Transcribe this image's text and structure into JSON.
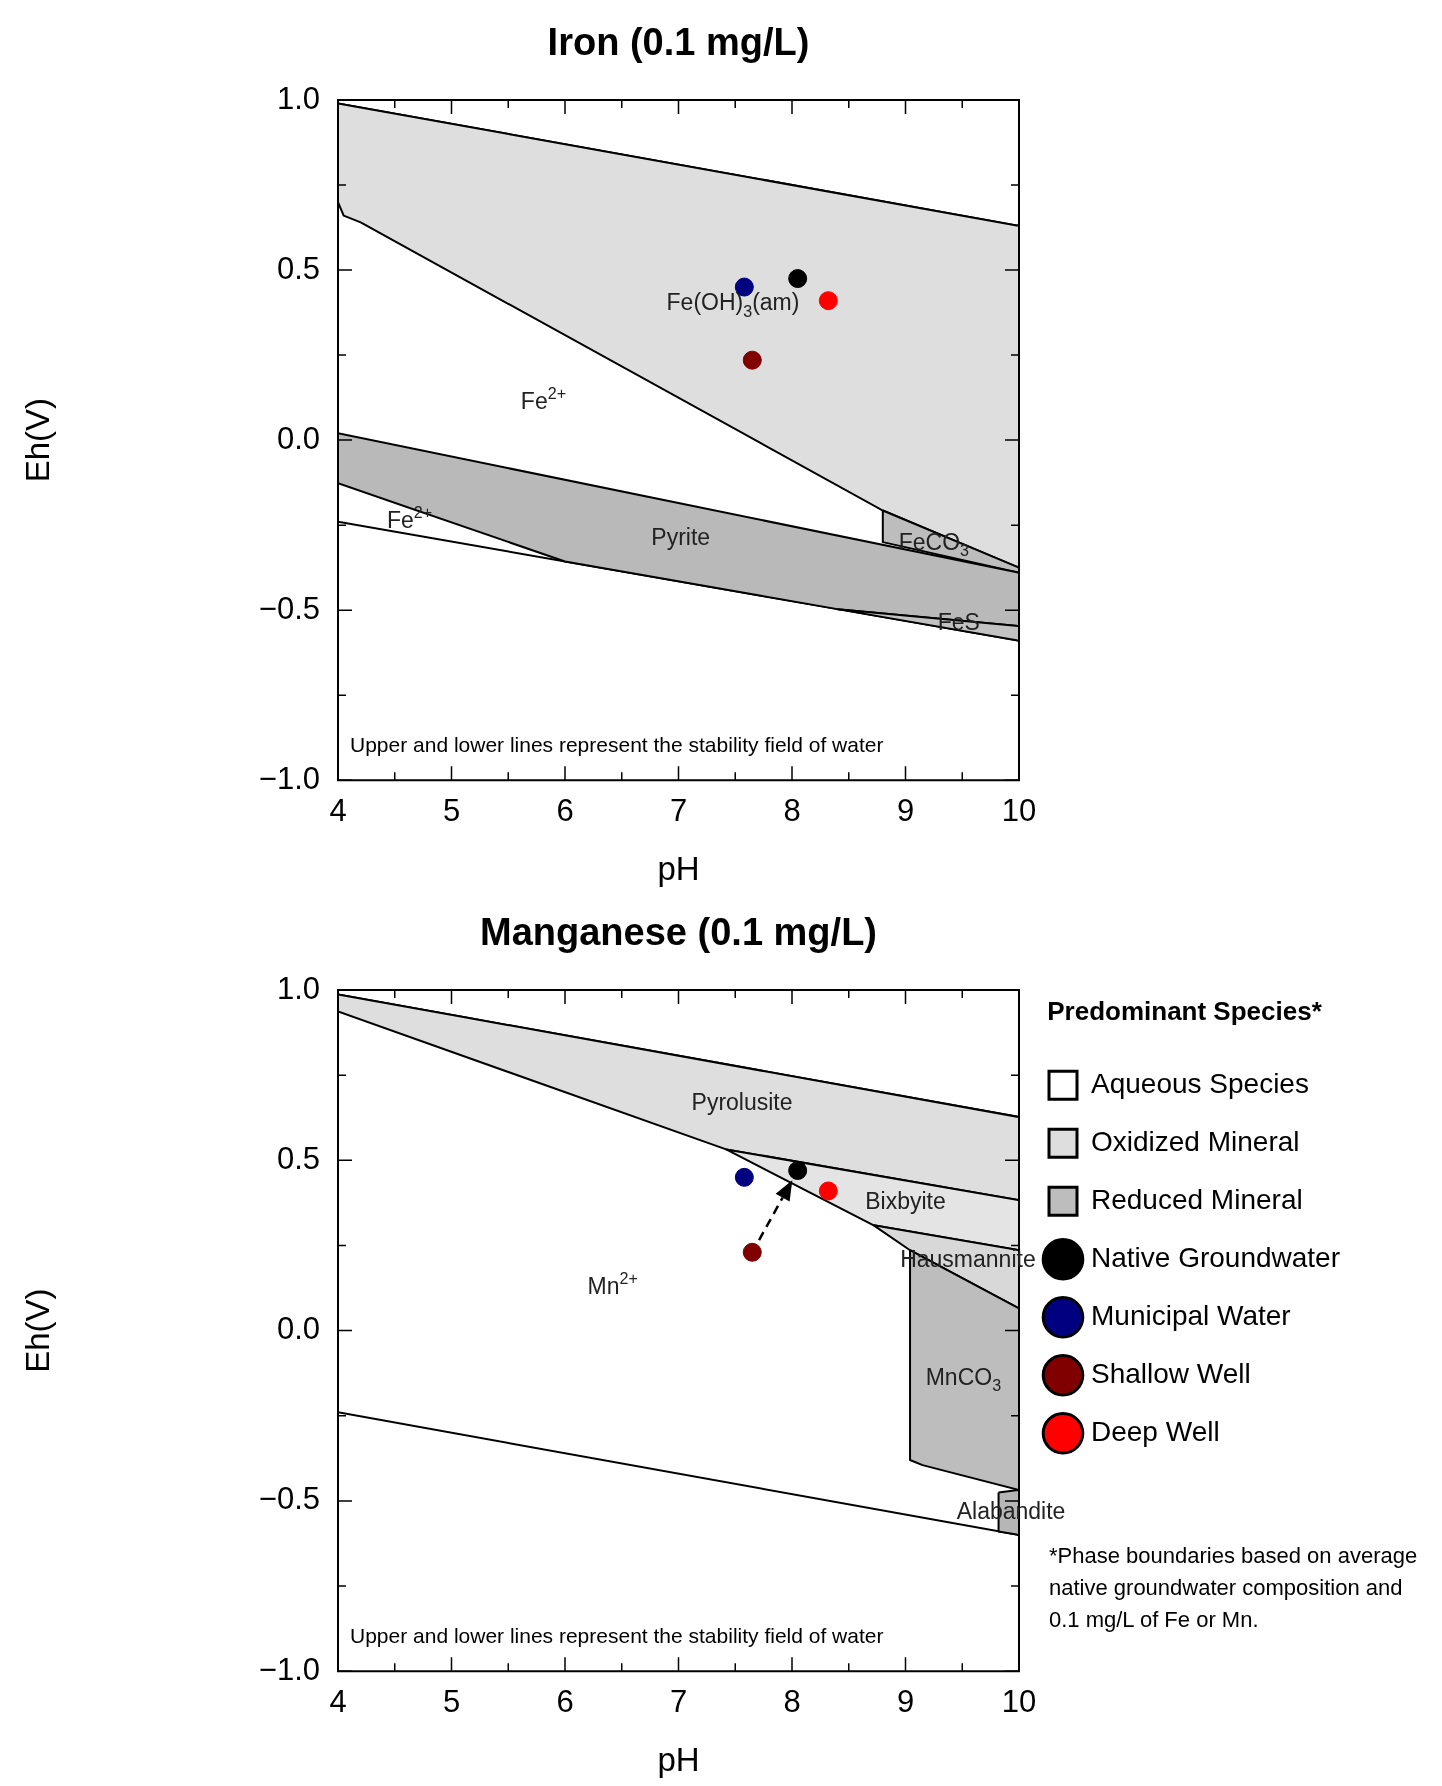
{
  "chart_data": [
    {
      "type": "scatter",
      "title": "Iron (0.1 mg/L)",
      "xlabel": "pH",
      "ylabel": "Eh(V)",
      "xlim": [
        4,
        10
      ],
      "xticks": [
        4,
        5,
        6,
        7,
        8,
        9,
        10
      ],
      "ylim": [
        -1,
        1
      ],
      "yticks": [
        {
          "value": -1,
          "label": "−1.0"
        },
        {
          "value": -0.5,
          "label": "−0.5"
        },
        {
          "value": 0,
          "label": "0.0"
        },
        {
          "value": 0.5,
          "label": "0.5"
        },
        {
          "value": 1,
          "label": "1.0"
        }
      ],
      "series": [
        {
          "type": "area",
          "color": "#ffffff",
          "x": [
            4,
            10,
            10,
            4
          ],
          "values": [
            0.99,
            0.63,
            -0.59,
            -0.24
          ]
        },
        {
          "type": "area",
          "color": "#dedede",
          "x": [
            4,
            10,
            10,
            8.8,
            4.2,
            4.05,
            4
          ],
          "values": [
            0.99,
            0.63,
            -0.375,
            -0.207,
            0.64,
            0.66,
            0.7
          ]
        },
        {
          "type": "area",
          "color": "#bdbdbd",
          "x": [
            8.8,
            10,
            10,
            8.8
          ],
          "values": [
            -0.207,
            -0.375,
            -0.39,
            -0.3
          ]
        },
        {
          "type": "area",
          "color": "#b9b9b9",
          "x": [
            4,
            10,
            10,
            8.4,
            6,
            4
          ],
          "values": [
            0.02,
            -0.39,
            -0.547,
            -0.497,
            -0.357,
            -0.127
          ]
        },
        {
          "type": "area",
          "color": "#c2c2c2",
          "x": [
            8.4,
            10,
            10
          ],
          "values": [
            -0.497,
            -0.547,
            -0.59
          ]
        },
        {
          "type": "scatter",
          "marker": "circle",
          "color": "#000000",
          "x": [
            8.05
          ],
          "values": [
            0.475
          ]
        },
        {
          "type": "scatter",
          "marker": "circle",
          "color": "#000080",
          "x": [
            7.58
          ],
          "values": [
            0.45
          ]
        },
        {
          "type": "scatter",
          "marker": "circle",
          "color": "#800000",
          "x": [
            7.65
          ],
          "values": [
            0.235
          ]
        },
        {
          "type": "scatter",
          "marker": "circle",
          "color": "#ff0000",
          "x": [
            8.32
          ],
          "values": [
            0.41
          ]
        }
      ],
      "annotations": [
        "Upper and lower lines represent the stability field of water",
        "Fe(OH)$_{3}$(am)",
        "Fe$^{2+}$",
        "Fe$^{2+}$",
        "Pyrite",
        "FeCO$_{3}$",
        "FeS"
      ]
    },
    {
      "type": "scatter",
      "title": "Manganese (0.1 mg/L)",
      "xlabel": "pH",
      "ylabel": "Eh(V)",
      "legend": "right",
      "legend_title": "Predominant Species*",
      "xlim": [
        4,
        10
      ],
      "xticks": [
        4,
        5,
        6,
        7,
        8,
        9,
        10
      ],
      "ylim": [
        -1,
        1
      ],
      "yticks": [
        {
          "value": -1,
          "label": "−1.0"
        },
        {
          "value": -0.5,
          "label": "−0.5"
        },
        {
          "value": 0,
          "label": "0.0"
        },
        {
          "value": 0.5,
          "label": "0.5"
        },
        {
          "value": 1,
          "label": "1.0"
        }
      ],
      "series": [
        {
          "type": "area",
          "name": "Aqueous Species",
          "color": "#ffffff",
          "x": [
            4,
            10,
            10,
            4
          ],
          "values": [
            0.987,
            0.627,
            -0.6,
            -0.24
          ]
        },
        {
          "type": "area",
          "name": "Oxidized Mineral",
          "color": "#dedede",
          "x": [
            4,
            10,
            10,
            7.42,
            4
          ],
          "values": [
            0.987,
            0.627,
            0.383,
            0.532,
            0.937
          ]
        },
        {
          "type": "area",
          "color": "#e4e4e4",
          "x": [
            7.42,
            10,
            10,
            8.72
          ],
          "values": [
            0.532,
            0.383,
            0.236,
            0.309
          ]
        },
        {
          "type": "area",
          "color": "#d8d8d8",
          "x": [
            8.72,
            10,
            10,
            9.04
          ],
          "values": [
            0.309,
            0.236,
            0.065,
            0.236
          ]
        },
        {
          "type": "area",
          "name": "Reduced Mineral",
          "color": "#bdbdbd",
          "x": [
            9.04,
            10,
            10,
            9.15,
            9.04
          ],
          "values": [
            0.236,
            0.065,
            -0.468,
            -0.395,
            -0.38
          ]
        },
        {
          "type": "area",
          "color": "#b6b6b6",
          "x": [
            9.82,
            10,
            10,
            9.82
          ],
          "values": [
            -0.475,
            -0.468,
            -0.6,
            -0.59
          ]
        },
        {
          "type": "scatter",
          "marker": "circle",
          "name": "Native Groundwater",
          "color": "#000000",
          "x": [
            8.05
          ],
          "values": [
            0.47
          ]
        },
        {
          "type": "scatter",
          "marker": "circle",
          "name": "Municipal Water",
          "color": "#000080",
          "x": [
            7.58
          ],
          "values": [
            0.45
          ]
        },
        {
          "type": "scatter",
          "marker": "circle",
          "name": "Shallow Well",
          "color": "#800000",
          "x": [
            7.65
          ],
          "values": [
            0.23
          ]
        },
        {
          "type": "scatter",
          "marker": "circle",
          "name": "Deep Well",
          "color": "#ff0000",
          "x": [
            8.32
          ],
          "values": [
            0.41
          ]
        }
      ],
      "annotations": [
        "Upper and lower lines represent the stability field of water",
        "*Phase boundaries based on average native groundwater composition and 0.1 mg/L of Fe or Mn.",
        "Pyrolusite",
        "Bixbyite",
        "Hausmannite",
        "Mn$^{2+}$",
        "MnCO$_{3}$",
        "Alabandite"
      ]
    }
  ]
}
